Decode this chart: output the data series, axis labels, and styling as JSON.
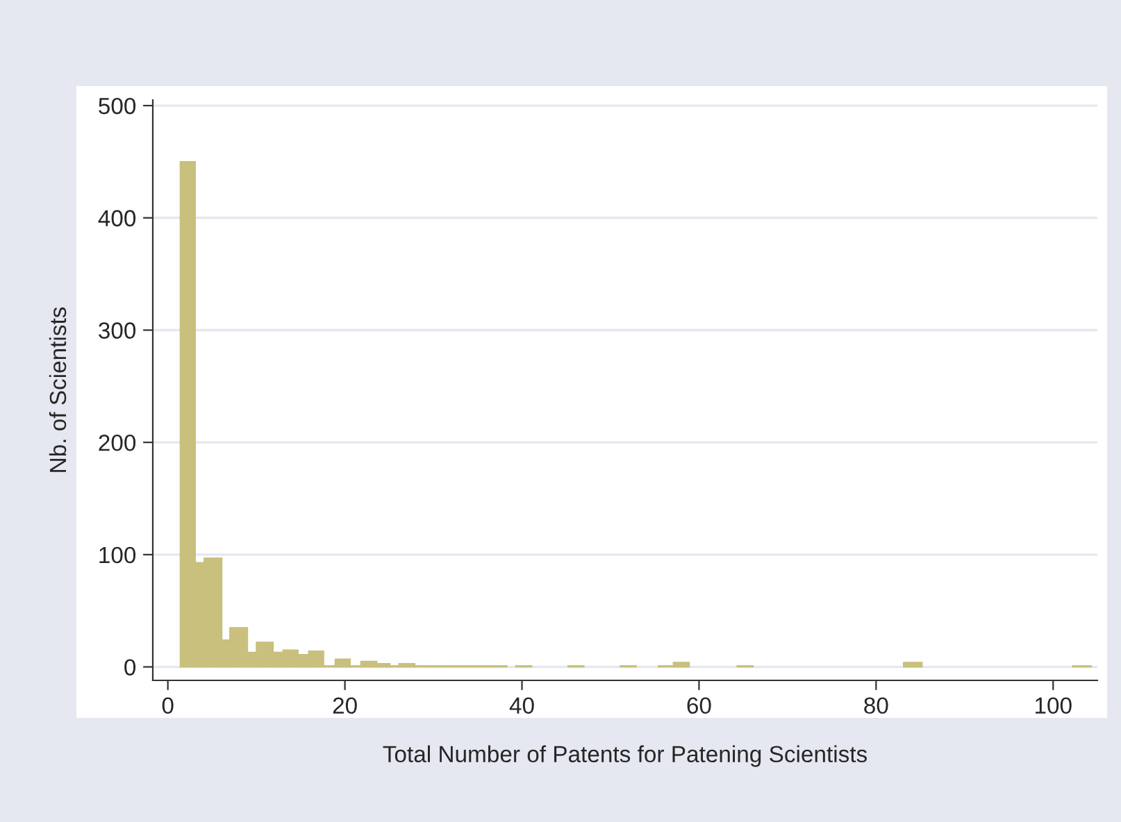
{
  "chart_data": {
    "type": "histogram",
    "xlabel": "Total Number of Patents for Patening Scientists",
    "ylabel": "Nb. of Scientists",
    "bins": [
      1.4,
      3.1,
      4.1,
      6.1,
      7.0,
      9.0,
      10.0,
      11.9,
      13.0,
      14.7,
      15.9,
      17.6,
      18.9,
      20.6,
      21.8,
      23.6,
      25.1,
      26.1,
      27.9,
      29.6,
      31.3,
      33.0,
      34.7,
      36.5,
      38.3,
      39.3,
      41.1,
      45.2,
      47.0,
      51.1,
      52.9,
      55.4,
      57.1,
      58.9,
      64.3,
      66.1,
      83.1,
      85.2,
      102.2,
      104.3
    ],
    "values": [
      450,
      93,
      97,
      24,
      35,
      13,
      22,
      13,
      15,
      11,
      14,
      1,
      7,
      1,
      5,
      3,
      1,
      3,
      1,
      1,
      1,
      1,
      1,
      1,
      0,
      1,
      0,
      1,
      0,
      1,
      0,
      1,
      4,
      0,
      1,
      0,
      4,
      0,
      1
    ],
    "color": "#c8c07c",
    "xlim": [
      -1.7,
      105
    ],
    "ylim": [
      -12,
      505
    ],
    "xticks": [
      0,
      20,
      40,
      60,
      80,
      100
    ],
    "yticks": [
      0,
      100,
      200,
      300,
      400,
      500
    ],
    "grid": "y"
  }
}
